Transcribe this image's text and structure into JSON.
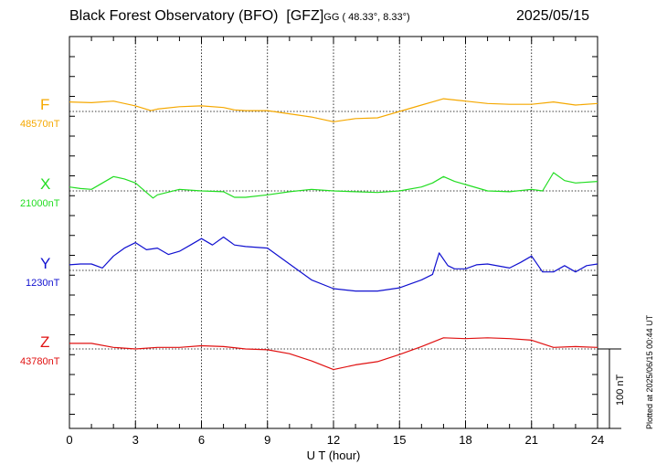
{
  "header": {
    "station": "Black Forest Observatory (BFO)",
    "institute": "[GFZ]",
    "coords": "GG ( 48.33°,   8.33°)",
    "date": "2025/05/15"
  },
  "footer": {
    "plotted": "Plotted at 2025/06/15 00:44 UT"
  },
  "scale": {
    "label": "100 nT"
  },
  "colors": {
    "F": "#f5a800",
    "X": "#22dd22",
    "Y": "#1010d0",
    "Z": "#e01010",
    "grid": "#000000"
  },
  "chart_data": {
    "type": "line",
    "xlabel": "U T (hour)",
    "xlim": [
      0,
      24
    ],
    "xticks": [
      "0",
      "3",
      "6",
      "9",
      "12",
      "15",
      "18",
      "21",
      "24"
    ],
    "y_unit": "nT",
    "grid": true,
    "series": [
      {
        "name": "F",
        "baseline_label": "48570nT",
        "baseline": 48570,
        "x": [
          0,
          1,
          2,
          3,
          3.7,
          4,
          5,
          6,
          7,
          7.5,
          8,
          9,
          10,
          11,
          12,
          13,
          14,
          15,
          16,
          16.5,
          17,
          18,
          19,
          20,
          21,
          22,
          23,
          24
        ],
        "y": [
          48582,
          48581,
          48583,
          48577,
          48571,
          48573,
          48576,
          48577,
          48575,
          48572,
          48571,
          48571,
          48567,
          48563,
          48557,
          48561,
          48562,
          48570,
          48578,
          48582,
          48586,
          48583,
          48580,
          48579,
          48579,
          48582,
          48578,
          48580
        ]
      },
      {
        "name": "X",
        "baseline_label": "21000nT",
        "baseline": 21000,
        "x": [
          0,
          0.5,
          1,
          2,
          2.5,
          3,
          3.5,
          3.8,
          4,
          5,
          6,
          7,
          7.5,
          8,
          9,
          10,
          11,
          12,
          13,
          14,
          15,
          16,
          16.5,
          17,
          17.5,
          18,
          19,
          20,
          21,
          21.5,
          22,
          22.5,
          23,
          24
        ],
        "y": [
          21005,
          21003,
          21002,
          21018,
          21015,
          21010,
          20998,
          20991,
          20995,
          21002,
          21000,
          20999,
          20992,
          20992,
          20995,
          20999,
          21002,
          21000,
          20999,
          20998,
          21000,
          21005,
          21010,
          21018,
          21012,
          21008,
          21000,
          20999,
          21002,
          21000,
          21023,
          21013,
          21010,
          21012
        ]
      },
      {
        "name": "Y",
        "baseline_label": "1230nT",
        "baseline": 1230,
        "x": [
          0,
          0.5,
          1,
          1.5,
          2,
          2.5,
          3,
          3.5,
          4,
          4.5,
          5,
          5.5,
          6,
          6.5,
          7,
          7.5,
          8,
          9,
          10,
          11,
          12,
          13,
          14,
          15,
          16,
          16.5,
          16.8,
          17.2,
          17.5,
          18,
          18.5,
          19,
          20,
          20.5,
          21,
          21.5,
          22,
          22.5,
          23,
          23.5,
          24
        ],
        "y": [
          1237,
          1238,
          1238,
          1233,
          1248,
          1258,
          1265,
          1256,
          1258,
          1250,
          1254,
          1262,
          1270,
          1262,
          1272,
          1262,
          1260,
          1258,
          1238,
          1218,
          1207,
          1204,
          1204,
          1208,
          1218,
          1225,
          1252,
          1236,
          1232,
          1232,
          1237,
          1238,
          1233,
          1240,
          1248,
          1228,
          1228,
          1236,
          1228,
          1236,
          1238
        ]
      },
      {
        "name": "Z",
        "baseline_label": "43780nT",
        "baseline": 43780,
        "x": [
          0,
          1,
          2,
          3,
          4,
          5,
          6,
          7,
          8,
          9,
          10,
          11,
          12,
          13,
          14,
          15,
          16,
          17,
          18,
          19,
          20,
          21,
          22,
          23,
          24
        ],
        "y": [
          43787,
          43787,
          43782,
          43780,
          43782,
          43782,
          43784,
          43783,
          43780,
          43779,
          43774,
          43765,
          43754,
          43760,
          43764,
          43773,
          43783,
          43794,
          43793,
          43794,
          43793,
          43791,
          43782,
          43783,
          43782
        ]
      }
    ]
  }
}
